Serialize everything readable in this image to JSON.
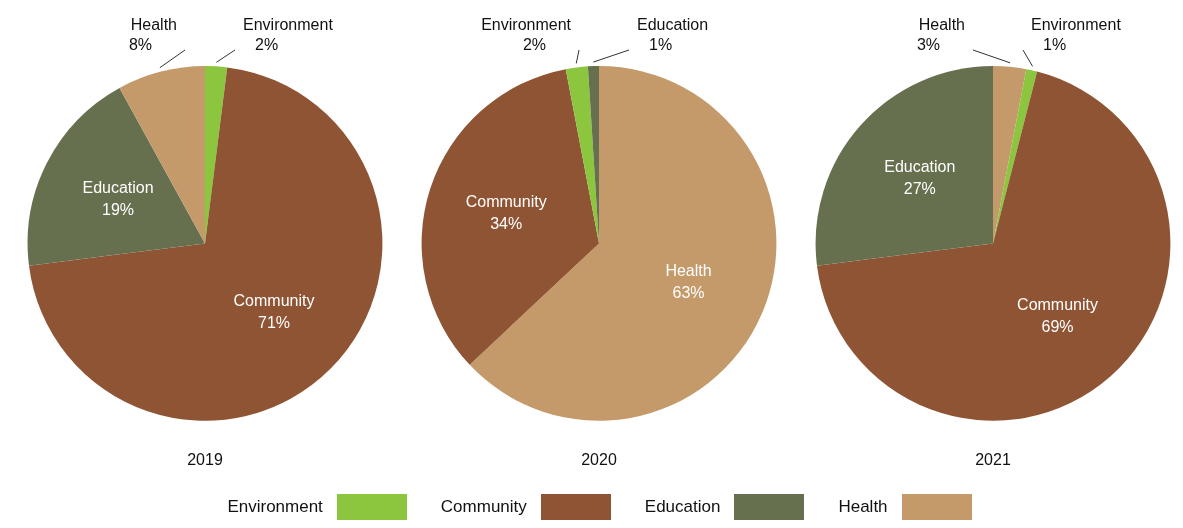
{
  "chart_data": [
    {
      "type": "pie",
      "title": "2019",
      "categories": [
        "Environment",
        "Community",
        "Education",
        "Health"
      ],
      "values": [
        2,
        71,
        19,
        8
      ],
      "value_labels": [
        "2%",
        "71%",
        "19%",
        "8%"
      ],
      "colors": [
        "#8cc63f",
        "#8f5433",
        "#66704f",
        "#c49a6a"
      ],
      "legend": "bottom"
    },
    {
      "type": "pie",
      "title": "2020",
      "categories": [
        "Health",
        "Community",
        "Environment",
        "Education"
      ],
      "values": [
        63,
        34,
        2,
        1
      ],
      "value_labels": [
        "63%",
        "34%",
        "2%",
        "1%"
      ],
      "colors": [
        "#c49a6a",
        "#8f5433",
        "#8cc63f",
        "#66704f"
      ]
    },
    {
      "type": "pie",
      "title": "2021",
      "categories": [
        "Health",
        "Environment",
        "Community",
        "Education"
      ],
      "values": [
        3,
        1,
        69,
        27
      ],
      "value_labels": [
        "3%",
        "1%",
        "69%",
        "27%"
      ],
      "colors": [
        "#c49a6a",
        "#8cc63f",
        "#8f5433",
        "#66704f"
      ]
    }
  ]
}
